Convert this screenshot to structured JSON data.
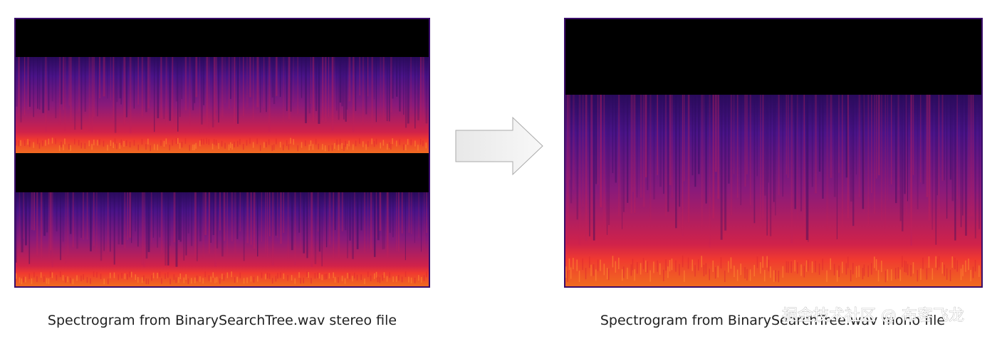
{
  "left_caption": "Spectrogram from BinarySearchTree.wav stereo file",
  "right_caption": "Spectrogram from BinarySearchTree.wav mono file",
  "watermark": "掘金技术社区 @ 布客飞龙"
}
